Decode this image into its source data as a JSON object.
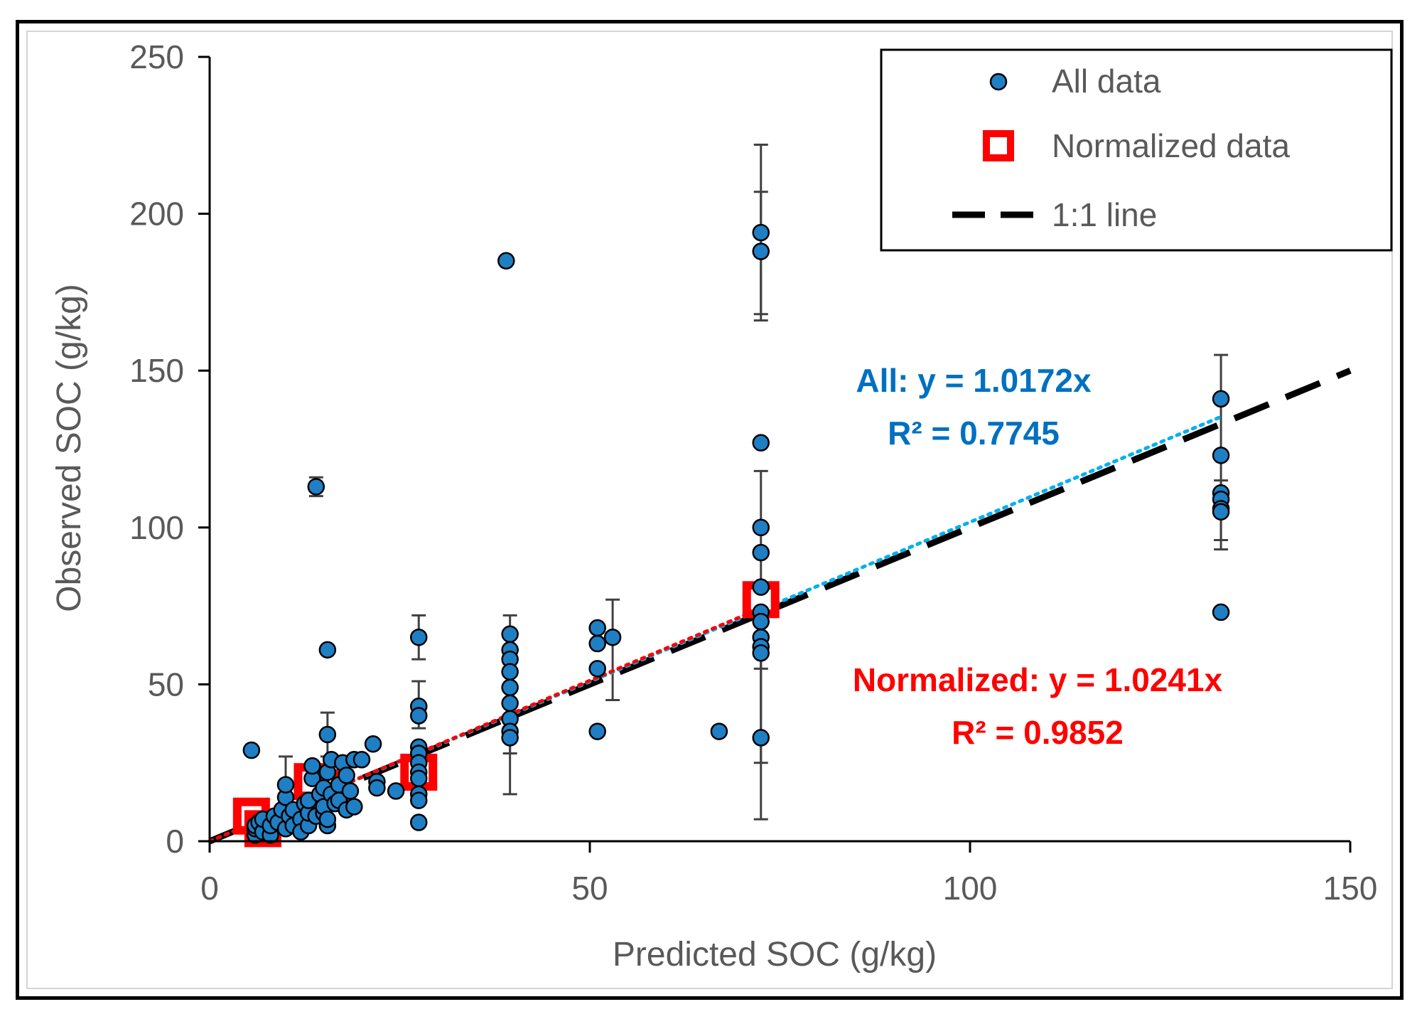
{
  "chart_data": {
    "type": "scatter",
    "xlabel": "Predicted SOC (g/kg)",
    "ylabel": "Observed SOC (g/kg)",
    "xlim": [
      0,
      150
    ],
    "ylim": [
      0,
      250
    ],
    "xticks": [
      "0",
      "50",
      "100",
      "150"
    ],
    "yticks": [
      "0",
      "50",
      "100",
      "150",
      "200",
      "250"
    ],
    "grid": false,
    "legend_position": "top-right",
    "series": [
      {
        "name": "All data",
        "marker": "circle",
        "color": "#1f7fc4",
        "points": [
          [
            5.5,
            29
          ],
          [
            6,
            2
          ],
          [
            6,
            4
          ],
          [
            6,
            5
          ],
          [
            6.5,
            6
          ],
          [
            7,
            3
          ],
          [
            7,
            7
          ],
          [
            8,
            2
          ],
          [
            8,
            5
          ],
          [
            8.5,
            8
          ],
          [
            9,
            6
          ],
          [
            9.5,
            10
          ],
          [
            10,
            14
          ],
          [
            10,
            18
          ],
          [
            10,
            4
          ],
          [
            10.5,
            8
          ],
          [
            11,
            5
          ],
          [
            11,
            10
          ],
          [
            12,
            7
          ],
          [
            12,
            3
          ],
          [
            12.5,
            12
          ],
          [
            13,
            5
          ],
          [
            13,
            9
          ],
          [
            13,
            13
          ],
          [
            13.5,
            20
          ],
          [
            13.5,
            24
          ],
          [
            14,
            113
          ],
          [
            14,
            8
          ],
          [
            14.5,
            15
          ],
          [
            15,
            9
          ],
          [
            15,
            11
          ],
          [
            15,
            17
          ],
          [
            15.5,
            5
          ],
          [
            15.5,
            7
          ],
          [
            15.5,
            22
          ],
          [
            15.5,
            34
          ],
          [
            15.5,
            61
          ],
          [
            16,
            26
          ],
          [
            16,
            15
          ],
          [
            16.5,
            12
          ],
          [
            17,
            18
          ],
          [
            17,
            13
          ],
          [
            17.5,
            25
          ],
          [
            18,
            21
          ],
          [
            18,
            10
          ],
          [
            18.5,
            16
          ],
          [
            19,
            26
          ],
          [
            19,
            11
          ],
          [
            20,
            26
          ],
          [
            21.5,
            31
          ],
          [
            22,
            19
          ],
          [
            22,
            17
          ],
          [
            24.5,
            16
          ],
          [
            27.5,
            65
          ],
          [
            27.5,
            43
          ],
          [
            27.5,
            40
          ],
          [
            27.5,
            30
          ],
          [
            27.5,
            28
          ],
          [
            27.5,
            25
          ],
          [
            27.5,
            22
          ],
          [
            27.5,
            20
          ],
          [
            27.5,
            15
          ],
          [
            27.5,
            13
          ],
          [
            27.5,
            6
          ],
          [
            39,
            185
          ],
          [
            39.5,
            66
          ],
          [
            39.5,
            61
          ],
          [
            39.5,
            58
          ],
          [
            39.5,
            54
          ],
          [
            39.5,
            49
          ],
          [
            39.5,
            44
          ],
          [
            39.5,
            39
          ],
          [
            39.5,
            35
          ],
          [
            39.5,
            33
          ],
          [
            51,
            68
          ],
          [
            51,
            63
          ],
          [
            51,
            55
          ],
          [
            51,
            35
          ],
          [
            53,
            65
          ],
          [
            67,
            35
          ],
          [
            72.5,
            194
          ],
          [
            72.5,
            188
          ],
          [
            72.5,
            127
          ],
          [
            72.5,
            100
          ],
          [
            72.5,
            92
          ],
          [
            72.5,
            81
          ],
          [
            72.5,
            73
          ],
          [
            72.5,
            70
          ],
          [
            72.5,
            65
          ],
          [
            72.5,
            62
          ],
          [
            72.5,
            60
          ],
          [
            72.5,
            33
          ],
          [
            133,
            141
          ],
          [
            133,
            123
          ],
          [
            133,
            111
          ],
          [
            133,
            109
          ],
          [
            133,
            106
          ],
          [
            133,
            105
          ],
          [
            133,
            73
          ]
        ]
      },
      {
        "name": "Normalized data",
        "marker": "square",
        "color": "#ff0000",
        "points": [
          [
            5.5,
            8
          ],
          [
            7,
            4
          ],
          [
            13.5,
            19
          ],
          [
            16.5,
            17
          ],
          [
            27.5,
            22
          ],
          [
            72.5,
            77
          ]
        ]
      },
      {
        "name": "1:1 line",
        "style": "dashed",
        "color": "#000000",
        "points": [
          [
            0,
            0
          ],
          [
            150,
            150
          ]
        ]
      }
    ],
    "error_bars": [
      {
        "x": 10,
        "lo": 15,
        "hi": 27
      },
      {
        "x": 14,
        "lo": 110,
        "hi": 116
      },
      {
        "x": 15.5,
        "lo": 27,
        "hi": 41
      },
      {
        "x": 27.5,
        "lo": 58,
        "hi": 72
      },
      {
        "x": 27.5,
        "lo": 36,
        "hi": 51
      },
      {
        "x": 39.5,
        "lo": 15,
        "hi": 72
      },
      {
        "x": 39.5,
        "lo": 28,
        "hi": 65
      },
      {
        "x": 53,
        "lo": 45,
        "hi": 77
      },
      {
        "x": 72.5,
        "lo": 166,
        "hi": 222
      },
      {
        "x": 72.5,
        "lo": 168,
        "hi": 207
      },
      {
        "x": 72.5,
        "lo": 55,
        "hi": 118
      },
      {
        "x": 72.5,
        "lo": 7,
        "hi": 82
      },
      {
        "x": 72.5,
        "lo": 25,
        "hi": 78
      },
      {
        "x": 133,
        "lo": 96,
        "hi": 155
      },
      {
        "x": 133,
        "lo": 93,
        "hi": 115
      }
    ],
    "trendlines": [
      {
        "name": "All",
        "slope": 1.0172,
        "x_range": [
          0,
          133
        ],
        "color": "#00b0f0",
        "style": "dotted"
      },
      {
        "name": "Normalized",
        "slope": 1.0241,
        "x_range": [
          0,
          72.5
        ],
        "color": "#ff0000",
        "style": "dotted"
      }
    ],
    "annotations": {
      "all_eq": "All: y = 1.0172x",
      "all_r2": "R² = 0.7745",
      "norm_eq": "Normalized: y = 1.0241x",
      "norm_r2": "R² = 0.9852"
    },
    "colors": {
      "all_text": "#0070c0",
      "norm_text": "#ff0000",
      "axis": "#000000",
      "tick_text": "#595959"
    }
  }
}
